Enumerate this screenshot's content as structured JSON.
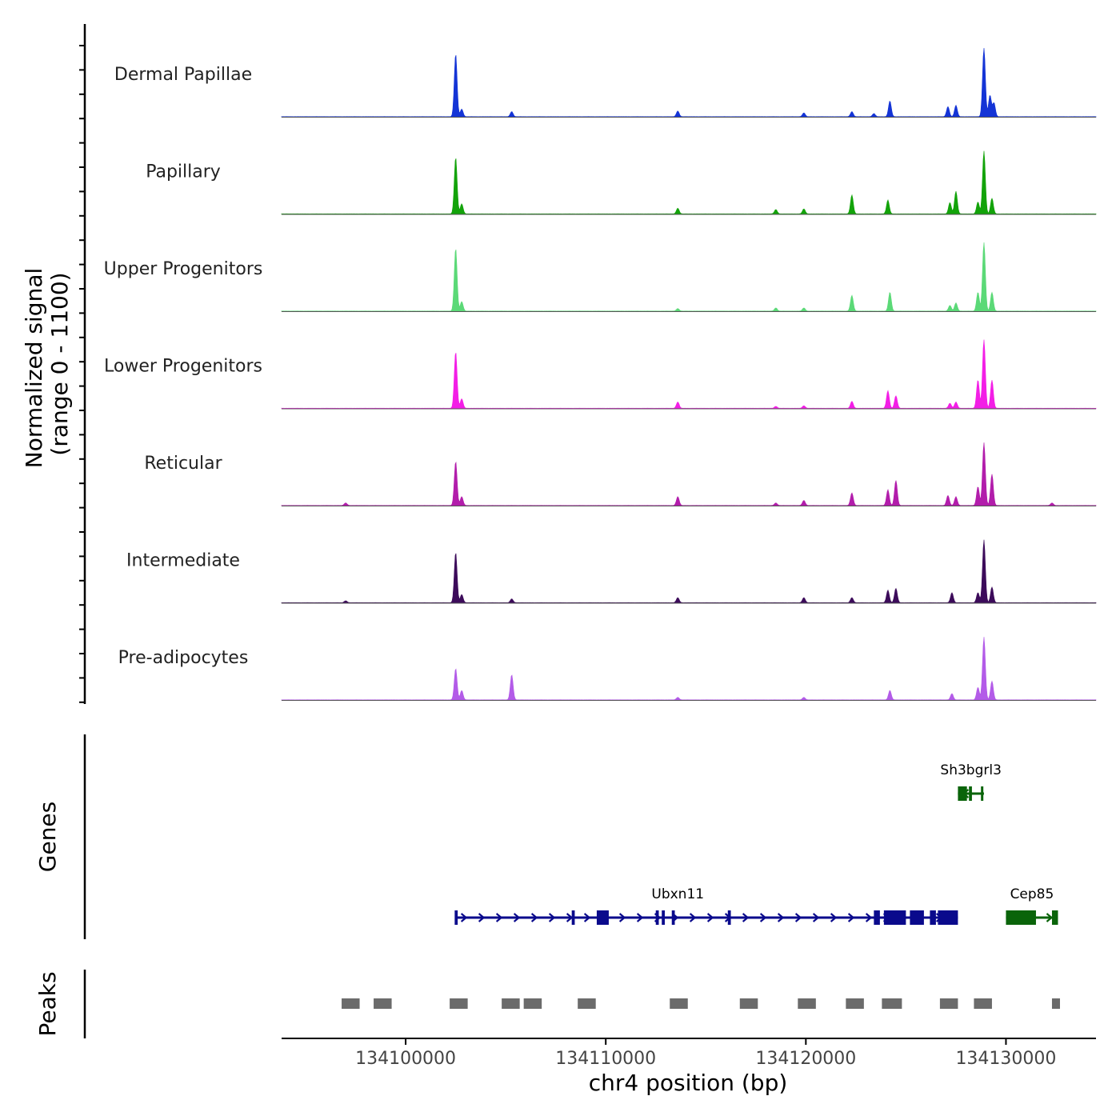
{
  "chart_data": {
    "type": "area",
    "title": "",
    "ylabel_line1": "Normalized signal",
    "ylabel_line2": "(range 0 - 1100)",
    "ylim": [
      0,
      1100
    ],
    "xlabel": "chr4 position (bp)",
    "xlim": [
      134093800,
      134134500
    ],
    "xticks": [
      134100000,
      134110000,
      134120000,
      134130000
    ],
    "xtick_labels": [
      "134100000",
      "134110000",
      "134120000",
      "134130000"
    ],
    "grid": false,
    "tracks": [
      {
        "name": "Dermal Papillae",
        "color": "#1434d6",
        "peaks": [
          [
            134102500,
            1000
          ],
          [
            134102800,
            120
          ],
          [
            134105300,
            80
          ],
          [
            134113600,
            90
          ],
          [
            134119900,
            60
          ],
          [
            134122300,
            80
          ],
          [
            134123400,
            50
          ],
          [
            134124200,
            250
          ],
          [
            134127100,
            160
          ],
          [
            134127500,
            180
          ],
          [
            134128900,
            1100
          ],
          [
            134129200,
            340
          ],
          [
            134129400,
            220
          ]
        ]
      },
      {
        "name": "Papillary",
        "color": "#13a30a",
        "peaks": [
          [
            134102500,
            900
          ],
          [
            134102800,
            160
          ],
          [
            134113600,
            90
          ],
          [
            134118500,
            70
          ],
          [
            134119900,
            80
          ],
          [
            134122300,
            300
          ],
          [
            134124100,
            220
          ],
          [
            134127200,
            180
          ],
          [
            134127500,
            360
          ],
          [
            134128600,
            190
          ],
          [
            134128900,
            1000
          ],
          [
            134129300,
            250
          ]
        ]
      },
      {
        "name": "Upper Progenitors",
        "color": "#5bd977",
        "peaks": [
          [
            134102500,
            1000
          ],
          [
            134102800,
            150
          ],
          [
            134113600,
            40
          ],
          [
            134118500,
            50
          ],
          [
            134119900,
            50
          ],
          [
            134122300,
            250
          ],
          [
            134124200,
            300
          ],
          [
            134127200,
            90
          ],
          [
            134127500,
            130
          ],
          [
            134128600,
            300
          ],
          [
            134128900,
            1100
          ],
          [
            134129300,
            300
          ]
        ]
      },
      {
        "name": "Lower Progenitors",
        "color": "#f31ee6",
        "peaks": [
          [
            134102500,
            900
          ],
          [
            134102800,
            150
          ],
          [
            134113600,
            100
          ],
          [
            134118500,
            30
          ],
          [
            134119900,
            40
          ],
          [
            134122300,
            110
          ],
          [
            134124100,
            280
          ],
          [
            134124500,
            200
          ],
          [
            134127200,
            80
          ],
          [
            134127500,
            100
          ],
          [
            134128600,
            450
          ],
          [
            134128900,
            1100
          ],
          [
            134129300,
            450
          ]
        ]
      },
      {
        "name": "Reticular",
        "color": "#b21dab",
        "peaks": [
          [
            134097000,
            40
          ],
          [
            134102500,
            700
          ],
          [
            134102800,
            140
          ],
          [
            134113600,
            140
          ],
          [
            134118500,
            40
          ],
          [
            134119900,
            80
          ],
          [
            134122300,
            200
          ],
          [
            134124100,
            250
          ],
          [
            134124500,
            400
          ],
          [
            134127100,
            160
          ],
          [
            134127500,
            140
          ],
          [
            134128600,
            300
          ],
          [
            134128900,
            1000
          ],
          [
            134129300,
            500
          ],
          [
            134132300,
            40
          ]
        ]
      },
      {
        "name": "Intermediate",
        "color": "#3c0b5a",
        "peaks": [
          [
            134097000,
            30
          ],
          [
            134102500,
            800
          ],
          [
            134102800,
            130
          ],
          [
            134105300,
            60
          ],
          [
            134113600,
            80
          ],
          [
            134119900,
            80
          ],
          [
            134122300,
            80
          ],
          [
            134124100,
            200
          ],
          [
            134124500,
            230
          ],
          [
            134127300,
            160
          ],
          [
            134128600,
            160
          ],
          [
            134128900,
            1000
          ],
          [
            134129300,
            250
          ]
        ]
      },
      {
        "name": "Pre-adipocytes",
        "color": "#b35be8",
        "peaks": [
          [
            134102500,
            500
          ],
          [
            134102800,
            150
          ],
          [
            134105300,
            400
          ],
          [
            134113600,
            40
          ],
          [
            134119900,
            40
          ],
          [
            134124200,
            150
          ],
          [
            134127300,
            100
          ],
          [
            134128600,
            200
          ],
          [
            134128900,
            1000
          ],
          [
            134129300,
            300
          ]
        ]
      }
    ],
    "genes_label": "Genes",
    "genes": [
      {
        "name": "Ubxn11",
        "start": 134102500,
        "end": 134127600,
        "strand": "+",
        "row": 2,
        "color": "#0a0a8c",
        "exons": [
          [
            134102450,
            134102600
          ],
          [
            134108300,
            134108450
          ],
          [
            134109550,
            134110150
          ],
          [
            134112500,
            134112650
          ],
          [
            134112800,
            134112950
          ],
          [
            134113300,
            134113450
          ],
          [
            134116100,
            134116250
          ],
          [
            134123400,
            134123700
          ],
          [
            134123900,
            134125000
          ],
          [
            134125200,
            134125900
          ],
          [
            134126200,
            134126500
          ],
          [
            134126600,
            134127600
          ]
        ]
      },
      {
        "name": "Sh3bgrl3",
        "start": 134127600,
        "end": 134128900,
        "strand": "-",
        "row": 1,
        "color": "#0a640a",
        "exons": [
          [
            134127600,
            134128050
          ],
          [
            134128150,
            134128300
          ],
          [
            134128750,
            134128850
          ]
        ]
      },
      {
        "name": "Cep85",
        "start": 134130000,
        "end": 134132600,
        "strand": "+",
        "row": 2,
        "color": "#0a640a",
        "exons": [
          [
            134130000,
            134131500
          ],
          [
            134132300,
            134132600
          ]
        ]
      }
    ],
    "peaks_label": "Peaks",
    "peak_regions": [
      [
        134096800,
        134097700
      ],
      [
        134098400,
        134099300
      ],
      [
        134102200,
        134103100
      ],
      [
        134104800,
        134105700
      ],
      [
        134105900,
        134106800
      ],
      [
        134108600,
        134109500
      ],
      [
        134113200,
        134114100
      ],
      [
        134116700,
        134117600
      ],
      [
        134119600,
        134120500
      ],
      [
        134122000,
        134122900
      ],
      [
        134123800,
        134124800
      ],
      [
        134126700,
        134127600
      ],
      [
        134128400,
        134129300
      ],
      [
        134132300,
        134132700
      ]
    ],
    "peak_color": "#6b6b6b"
  }
}
